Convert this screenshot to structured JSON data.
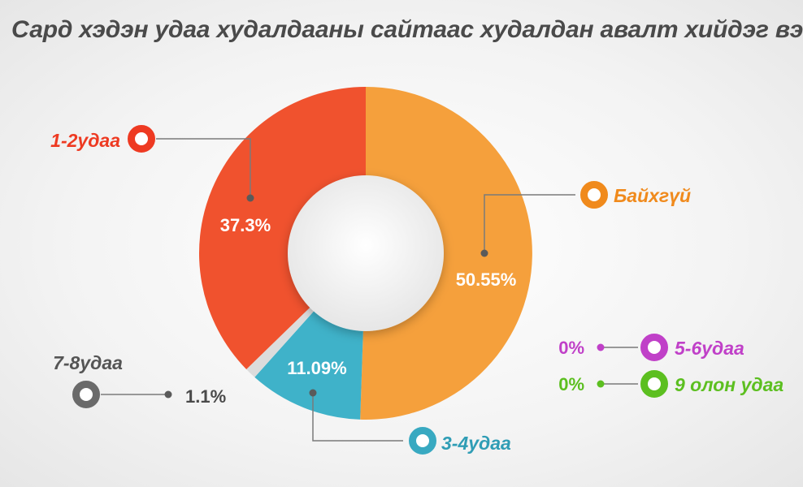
{
  "chart_data": {
    "type": "pie",
    "title": "Сард хэдэн удаа худалдааны сайтаас худалдан авалт хийдэг вэ?",
    "categories": [
      "Байхгүй",
      "3-4удаа",
      "7-8удаа",
      "1-2удаа",
      "5-6удаа",
      "9 олон удаа"
    ],
    "values": [
      50.55,
      11.09,
      1.1,
      37.3,
      0,
      0
    ],
    "value_labels": [
      "50.55%",
      "11.09%",
      "1.1%",
      "37.3%",
      "0%",
      "0%"
    ],
    "colors": [
      "#f5a03c",
      "#3fb2c9",
      "#dcdcdc",
      "#f0522e",
      "#c040c8",
      "#5cbf20"
    ],
    "legend_colors": [
      "#f08a1c",
      "#38a9c1",
      "#6a6a6a",
      "#ee3a22",
      "#c040c8",
      "#5cbf20"
    ],
    "label_colors": [
      "#f08a1c",
      "#2f9db5",
      "#555555",
      "#ee3a22",
      "#c040c8",
      "#5cbf20"
    ],
    "donut": true,
    "legend": "callouts"
  }
}
